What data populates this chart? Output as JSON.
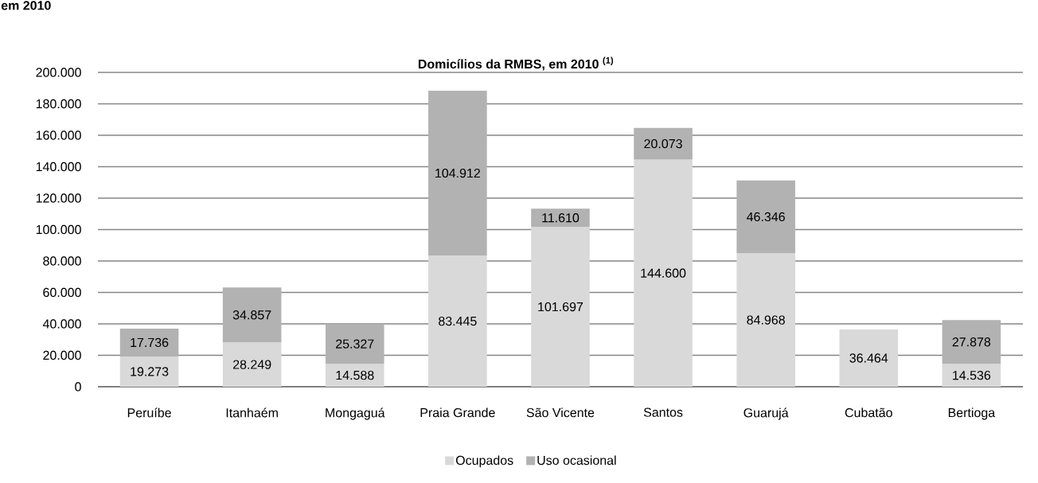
{
  "chart_data": {
    "type": "bar",
    "title": "Domicílios da RMBS, em 2010 $^{(1)}$",
    "annotations": [
      "em 2010"
    ],
    "categories": [
      "Peruíbe",
      "Itanhaém",
      "Mongaguá",
      "Praia Grande",
      "São Vicente",
      "Santos",
      "Guarujá",
      "Cubatão",
      "Bertioga"
    ],
    "series": [
      {
        "name": "Ocupados",
        "color": "#d9d9d9",
        "values": [
          19273,
          28249,
          14588,
          83445,
          101697,
          144600,
          84968,
          36464,
          14536
        ],
        "value_labels": [
          "19.273",
          "28.249",
          "14.588",
          "83.445",
          "101.697",
          "144.600",
          "84.968",
          "36.464",
          "14.536"
        ]
      },
      {
        "name": "Uso ocasional",
        "color": "#b2b2b2",
        "values": [
          17736,
          34857,
          25327,
          104912,
          11610,
          20073,
          46346,
          null,
          27878
        ],
        "value_labels": [
          "17.736",
          "34.857",
          "25.327",
          "104.912",
          "11.610",
          "20.073",
          "46.346",
          null,
          "27.878"
        ]
      }
    ],
    "stacked": true,
    "ylim": [
      0,
      200000
    ],
    "yticks": [
      0,
      {
        "value": 20000,
        "label": "20.000"
      },
      {
        "value": 40000,
        "label": "40.000"
      },
      {
        "value": 60000,
        "label": "60.000"
      },
      {
        "value": 80000,
        "label": "80.000"
      },
      {
        "value": 100000,
        "label": "100.000"
      },
      {
        "value": 120000,
        "label": "120.000"
      },
      {
        "value": 140000,
        "label": "140.000"
      },
      {
        "value": 160000,
        "label": "160.000"
      },
      {
        "value": 180000,
        "label": "180.000"
      },
      {
        "value": 200000,
        "label": "200.000"
      }
    ],
    "grid": "y",
    "legend": "bottom"
  }
}
